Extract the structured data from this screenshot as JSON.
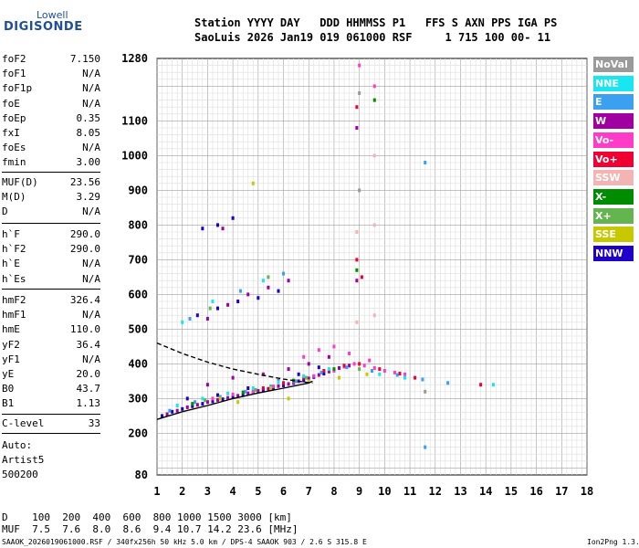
{
  "logo": {
    "top": "Lowell",
    "bottom": "DIGISONDE"
  },
  "header": {
    "line1": "Station YYYY DAY   DDD HHMMSS P1   FFS S AXN PPS IGA PS",
    "line2": "SaoLuis 2026 Jan19 019 061000 RSF     1 715 100 00- 11"
  },
  "params_group1": [
    {
      "label": "foF2",
      "value": "7.150"
    },
    {
      "label": "foF1",
      "value": "N/A"
    },
    {
      "label": "foF1p",
      "value": "N/A"
    },
    {
      "label": "foE",
      "value": "N/A"
    },
    {
      "label": "foEp",
      "value": "0.35"
    },
    {
      "label": "fxI",
      "value": "8.05"
    },
    {
      "label": "foEs",
      "value": "N/A"
    },
    {
      "label": "fmin",
      "value": "3.00"
    }
  ],
  "params_group2": [
    {
      "label": "MUF(D)",
      "value": "23.56"
    },
    {
      "label": "M(D)",
      "value": "3.29"
    },
    {
      "label": "D",
      "value": "N/A"
    }
  ],
  "params_group3": [
    {
      "label": "h`F",
      "value": "290.0"
    },
    {
      "label": "h`F2",
      "value": "290.0"
    },
    {
      "label": "h`E",
      "value": "N/A"
    },
    {
      "label": "h`Es",
      "value": "N/A"
    }
  ],
  "params_group4": [
    {
      "label": "hmF2",
      "value": "326.4"
    },
    {
      "label": "hmF1",
      "value": "N/A"
    },
    {
      "label": "hmE",
      "value": "110.0"
    },
    {
      "label": "yF2",
      "value": "36.4"
    },
    {
      "label": "yF1",
      "value": "N/A"
    },
    {
      "label": "yE",
      "value": "20.0"
    },
    {
      "label": "B0",
      "value": "43.7"
    },
    {
      "label": "B1",
      "value": "1.13"
    }
  ],
  "clevel": {
    "label": "C-level",
    "value": "33"
  },
  "auto": [
    "Auto:",
    "Artist5",
    "500200"
  ],
  "legend": [
    {
      "label": "NoVal",
      "color": "#9a9a9a"
    },
    {
      "label": "NNE",
      "color": "#19e6f0"
    },
    {
      "label": "E",
      "color": "#3ca0f0"
    },
    {
      "label": "W",
      "color": "#a000a0"
    },
    {
      "label": "Vo-",
      "color": "#ff3cc8"
    },
    {
      "label": "Vo+",
      "color": "#f00032"
    },
    {
      "label": "SSW",
      "color": "#f5b4b4"
    },
    {
      "label": "X-",
      "color": "#008c00"
    },
    {
      "label": "X+",
      "color": "#64b450"
    },
    {
      "label": "SSE",
      "color": "#c8c800"
    },
    {
      "label": "NNW",
      "color": "#1e00c8"
    }
  ],
  "muf_table": {
    "line1": "D    100  200  400  600  800 1000 1500 3000 [km]",
    "line2": "MUF  7.5  7.6  8.0  8.6  9.4 10.7 14.2 23.6 [MHz]"
  },
  "footer": {
    "left": "SAAOK_2026019061000.RSF / 340fx256h 50 kHz 5.0 km / DPS-4 SAAOK 903 / 2.6 S 315.8 E",
    "right": "Ion2Png 1.3.17"
  },
  "chart_data": {
    "type": "scatter",
    "xlim": [
      1,
      18
    ],
    "ylim": [
      80,
      1280
    ],
    "x_ticks": [
      1,
      2,
      3,
      4,
      5,
      6,
      7,
      8,
      9,
      10,
      11,
      12,
      13,
      14,
      15,
      16,
      17,
      18
    ],
    "y_ticks": [
      80,
      200,
      300,
      400,
      500,
      600,
      700,
      800,
      900,
      1000,
      1100,
      1280
    ],
    "grid": true,
    "series": [
      {
        "color": "#1e00c8",
        "points": [
          [
            1.2,
            250
          ],
          [
            1.6,
            262
          ],
          [
            2.0,
            270
          ],
          [
            2.4,
            278
          ],
          [
            2.8,
            285
          ],
          [
            3.2,
            292
          ],
          [
            3.6,
            298
          ],
          [
            4.0,
            305
          ],
          [
            4.4,
            310
          ],
          [
            4.8,
            318
          ],
          [
            5.2,
            325
          ],
          [
            5.6,
            330
          ],
          [
            6.0,
            338
          ],
          [
            6.4,
            345
          ],
          [
            6.8,
            352
          ],
          [
            7.2,
            362
          ],
          [
            7.6,
            372
          ],
          [
            2.2,
            300
          ],
          [
            3.4,
            310
          ],
          [
            4.6,
            330
          ],
          [
            5.8,
            350
          ],
          [
            6.6,
            370
          ],
          [
            7.4,
            390
          ],
          [
            2.6,
            540
          ],
          [
            3.4,
            560
          ],
          [
            4.2,
            580
          ],
          [
            5.0,
            590
          ],
          [
            5.8,
            610
          ],
          [
            2.8,
            790
          ],
          [
            3.4,
            800
          ],
          [
            4.0,
            820
          ]
        ]
      },
      {
        "color": "#a000a0",
        "points": [
          [
            1.4,
            255
          ],
          [
            1.8,
            265
          ],
          [
            2.2,
            275
          ],
          [
            2.6,
            282
          ],
          [
            3.0,
            290
          ],
          [
            3.4,
            296
          ],
          [
            3.8,
            302
          ],
          [
            4.2,
            308
          ],
          [
            4.6,
            315
          ],
          [
            5.0,
            322
          ],
          [
            5.4,
            328
          ],
          [
            5.8,
            336
          ],
          [
            6.2,
            342
          ],
          [
            6.6,
            350
          ],
          [
            7.0,
            358
          ],
          [
            7.4,
            368
          ],
          [
            7.8,
            378
          ],
          [
            8.2,
            388
          ],
          [
            8.6,
            395
          ],
          [
            3.0,
            340
          ],
          [
            4.0,
            360
          ],
          [
            5.2,
            370
          ],
          [
            6.2,
            385
          ],
          [
            7.0,
            400
          ],
          [
            7.8,
            420
          ],
          [
            3.0,
            530
          ],
          [
            3.8,
            570
          ],
          [
            4.6,
            600
          ],
          [
            5.4,
            620
          ],
          [
            6.2,
            640
          ],
          [
            3.6,
            790
          ],
          [
            8.9,
            640
          ],
          [
            8.9,
            1080
          ]
        ]
      },
      {
        "color": "#ff3cc8",
        "points": [
          [
            3.2,
            300
          ],
          [
            4.0,
            312
          ],
          [
            4.8,
            320
          ],
          [
            5.6,
            335
          ],
          [
            6.4,
            348
          ],
          [
            7.2,
            365
          ],
          [
            8.0,
            380
          ],
          [
            8.4,
            392
          ],
          [
            8.8,
            400
          ],
          [
            9.2,
            395
          ],
          [
            9.6,
            388
          ],
          [
            10.0,
            380
          ],
          [
            10.4,
            375
          ],
          [
            10.8,
            370
          ],
          [
            6.8,
            420
          ],
          [
            7.4,
            440
          ],
          [
            8.0,
            450
          ],
          [
            8.6,
            430
          ],
          [
            9.4,
            410
          ],
          [
            9.6,
            1200
          ],
          [
            9.0,
            1260
          ]
        ]
      },
      {
        "color": "#f00032",
        "points": [
          [
            5.2,
            330
          ],
          [
            6.0,
            345
          ],
          [
            6.8,
            360
          ],
          [
            7.6,
            380
          ],
          [
            8.4,
            395
          ],
          [
            9.0,
            400
          ],
          [
            9.8,
            385
          ],
          [
            10.6,
            372
          ],
          [
            11.2,
            360
          ],
          [
            8.9,
            700
          ],
          [
            9.1,
            650
          ],
          [
            8.9,
            1140
          ],
          [
            13.8,
            340
          ]
        ]
      },
      {
        "color": "#3ca0f0",
        "points": [
          [
            1.5,
            265
          ],
          [
            2.5,
            290
          ],
          [
            3.5,
            305
          ],
          [
            4.5,
            320
          ],
          [
            5.5,
            335
          ],
          [
            6.5,
            350
          ],
          [
            7.5,
            375
          ],
          [
            8.5,
            390
          ],
          [
            9.5,
            380
          ],
          [
            10.5,
            368
          ],
          [
            11.5,
            355
          ],
          [
            12.5,
            345
          ],
          [
            11.6,
            980
          ],
          [
            11.6,
            160
          ],
          [
            2.3,
            530
          ],
          [
            4.3,
            610
          ],
          [
            6.0,
            660
          ]
        ]
      },
      {
        "color": "#19e6f0",
        "points": [
          [
            1.8,
            280
          ],
          [
            2.8,
            300
          ],
          [
            3.8,
            315
          ],
          [
            4.8,
            330
          ],
          [
            5.8,
            348
          ],
          [
            6.8,
            365
          ],
          [
            7.8,
            385
          ],
          [
            9.8,
            370
          ],
          [
            10.8,
            360
          ],
          [
            2.0,
            520
          ],
          [
            3.2,
            580
          ],
          [
            5.2,
            640
          ],
          [
            14.3,
            340
          ]
        ]
      },
      {
        "color": "#008c00",
        "points": [
          [
            2.4,
            285
          ],
          [
            4.4,
            318
          ],
          [
            6.4,
            352
          ],
          [
            8.0,
            385
          ],
          [
            9.6,
            1160
          ],
          [
            8.9,
            670
          ]
        ]
      },
      {
        "color": "#64b450",
        "points": [
          [
            2.9,
            295
          ],
          [
            4.9,
            325
          ],
          [
            6.9,
            360
          ],
          [
            9.0,
            385
          ],
          [
            5.4,
            650
          ],
          [
            3.1,
            560
          ]
        ]
      },
      {
        "color": "#c8c800",
        "points": [
          [
            3.5,
            300
          ],
          [
            5.5,
            330
          ],
          [
            7.0,
            350
          ],
          [
            8.2,
            360
          ],
          [
            9.3,
            370
          ],
          [
            6.2,
            300
          ],
          [
            4.2,
            290
          ],
          [
            4.8,
            920
          ]
        ]
      },
      {
        "color": "#f5b4b4",
        "points": [
          [
            9.6,
            800
          ],
          [
            9.6,
            540
          ],
          [
            9.6,
            1000
          ],
          [
            8.9,
            780
          ],
          [
            8.9,
            520
          ]
        ]
      },
      {
        "color": "#9a9a9a",
        "points": [
          [
            9.0,
            900
          ],
          [
            9.0,
            1180
          ],
          [
            11.6,
            320
          ]
        ]
      }
    ],
    "profile_line": {
      "color": "#000000",
      "points": [
        [
          1,
          240
        ],
        [
          2,
          262
        ],
        [
          3,
          280
        ],
        [
          4,
          300
        ],
        [
          5,
          316
        ],
        [
          6,
          330
        ],
        [
          7,
          345
        ],
        [
          7.15,
          350
        ]
      ]
    },
    "profile_dashed": {
      "color": "#000000",
      "points": [
        [
          1,
          460
        ],
        [
          2,
          430
        ],
        [
          3,
          405
        ],
        [
          4,
          385
        ],
        [
          5,
          370
        ],
        [
          6,
          356
        ],
        [
          7,
          346
        ],
        [
          7.15,
          345
        ]
      ]
    }
  }
}
